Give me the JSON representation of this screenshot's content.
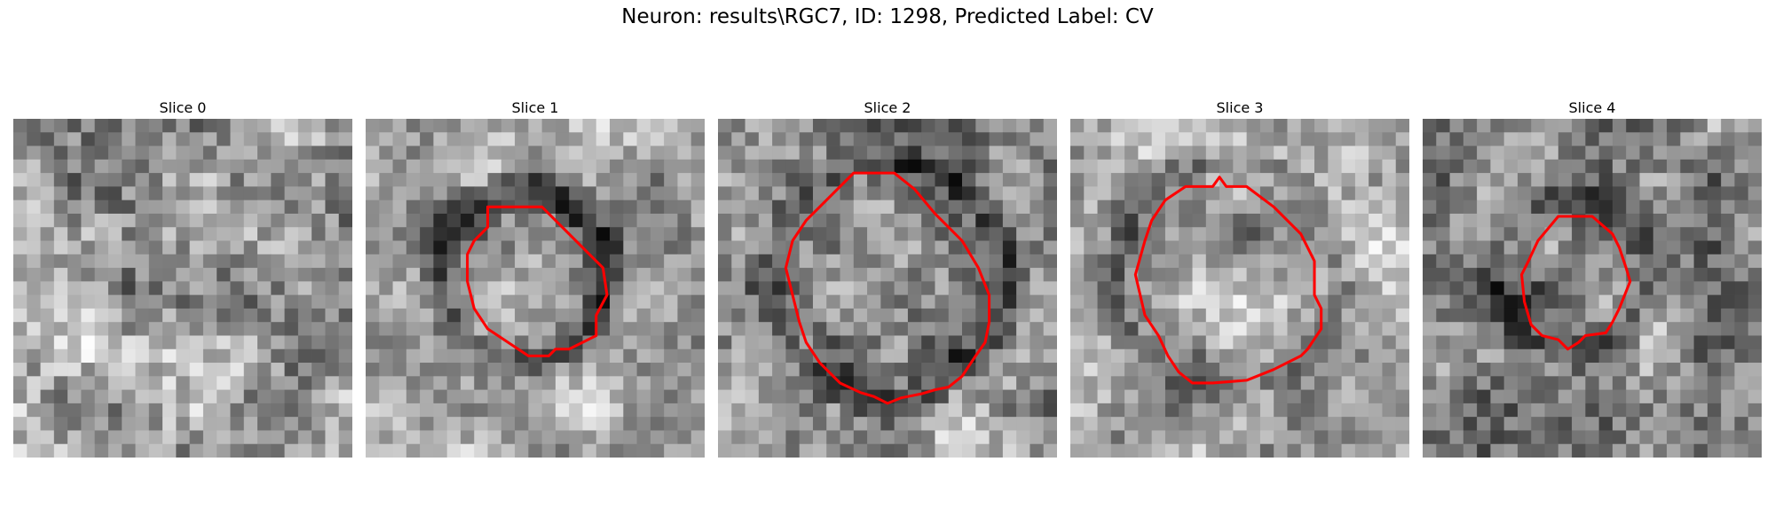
{
  "title": "Neuron: results\\RGC7, ID: 1298, Predicted Label: CV",
  "colors": {
    "contour": "#ff0000",
    "background": "#ffffff",
    "colormap": "gray"
  },
  "panels": [
    {
      "title": "Slice 0",
      "has_contour": false
    },
    {
      "title": "Slice 1",
      "has_contour": true
    },
    {
      "title": "Slice 2",
      "has_contour": true
    },
    {
      "title": "Slice 3",
      "has_contour": true
    },
    {
      "title": "Slice 4",
      "has_contour": true
    }
  ]
}
